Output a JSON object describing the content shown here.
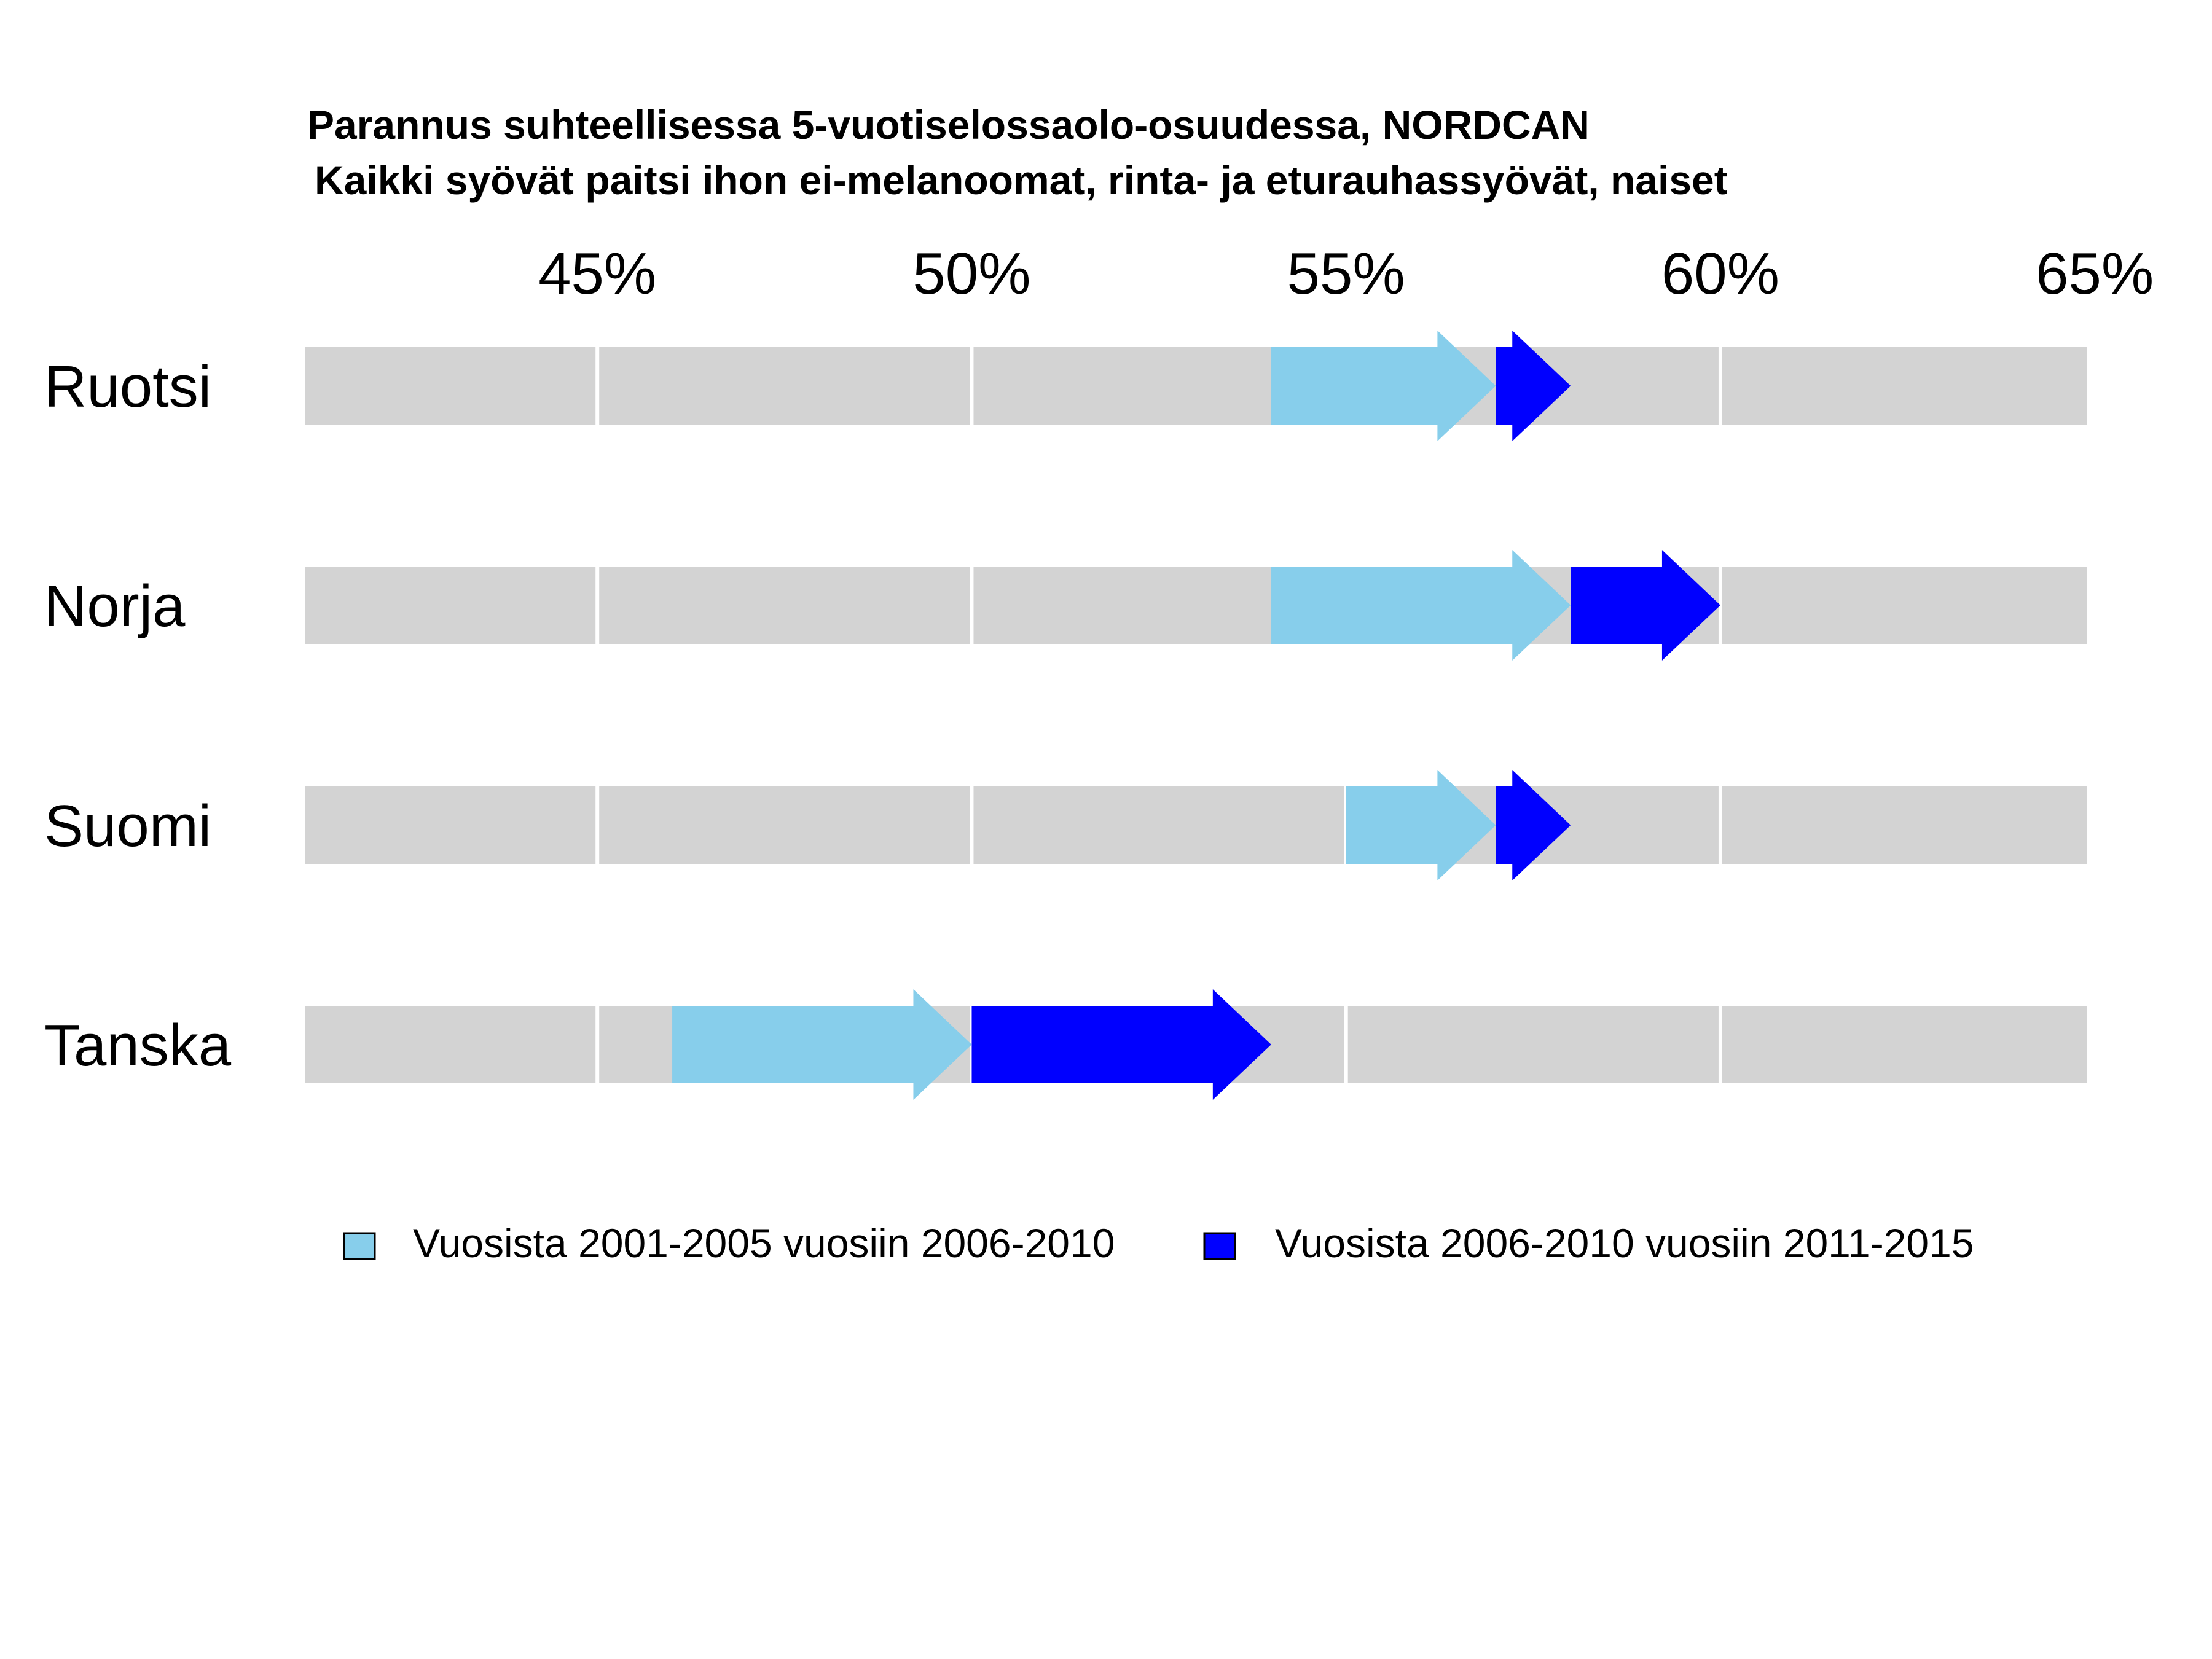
{
  "chart_data": {
    "type": "arrow",
    "title": "Parannus suhteellisessa 5-vuotiselossaolo-osuudessa, NORDCAN",
    "subtitle": "Kaikki syövät paitsi ihon ei-melanoomat, rinta- ja eturauhassyövät, naiset",
    "x_axis": {
      "min": 41.1,
      "max": 64.9,
      "ticks": [
        45,
        50,
        55,
        60,
        65
      ],
      "tick_labels": [
        "45%",
        "50%",
        "55%",
        "60%",
        "65%"
      ],
      "position": "top",
      "grid": true
    },
    "categories": [
      "Ruotsi",
      "Norja",
      "Suomi",
      "Tanska"
    ],
    "series": [
      {
        "name": "Vuosista 2001-2005 vuosiin 2006-2010",
        "color": "#87CEEB",
        "start": [
          54.0,
          54.0,
          55.0,
          46.0
        ],
        "end": [
          57.0,
          58.0,
          57.0,
          50.0
        ]
      },
      {
        "name": "Vuosista 2006-2010 vuosiin 2011-2015",
        "color": "#0000FF",
        "start": [
          57.0,
          58.0,
          57.0,
          50.0
        ],
        "end": [
          58.0,
          60.0,
          58.0,
          54.0
        ]
      }
    ],
    "background_band_color": "#D3D3D3",
    "grid_color": "#FFFFFF",
    "legend_position": "bottom"
  }
}
